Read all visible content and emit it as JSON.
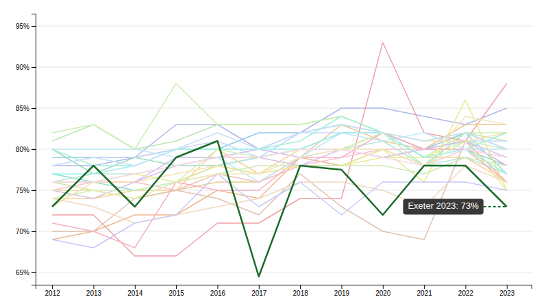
{
  "chart_data": {
    "type": "line",
    "x": [
      2012,
      2013,
      2014,
      2015,
      2016,
      2017,
      2018,
      2019,
      2020,
      2021,
      2022,
      2023
    ],
    "xlim": [
      2011.6,
      2023.6
    ],
    "xticks": [
      2012,
      2013,
      2014,
      2015,
      2016,
      2017,
      2018,
      2019,
      2020,
      2021,
      2022,
      2023
    ],
    "ylim": [
      63.5,
      96.5
    ],
    "yticks": [
      {
        "value": 65,
        "label": "65%"
      },
      {
        "value": 70,
        "label": "70%"
      },
      {
        "value": 75,
        "label": "75%"
      },
      {
        "value": 80,
        "label": "80%"
      },
      {
        "value": 85,
        "label": "85%"
      },
      {
        "value": 90,
        "label": "90%"
      },
      {
        "value": 95,
        "label": "95%"
      }
    ],
    "grid": true,
    "series": [
      {
        "color": "#b8e8b0",
        "values": [
          81,
          83,
          80,
          81,
          83,
          83,
          83,
          84,
          82,
          81,
          82,
          81
        ]
      },
      {
        "color": "#90c8e0",
        "values": [
          79,
          79,
          79,
          80,
          80,
          82,
          82,
          83,
          82,
          80,
          82,
          80
        ]
      },
      {
        "color": "#b0b8e8",
        "values": [
          78,
          78,
          79,
          83,
          83,
          80,
          82,
          85,
          85,
          84,
          83,
          85
        ]
      },
      {
        "color": "#f0a0a8",
        "values": [
          72,
          72,
          67,
          67,
          71,
          71,
          74,
          74,
          93,
          82,
          81,
          88
        ]
      },
      {
        "color": "#a0d8c0",
        "values": [
          80,
          77,
          79,
          78,
          78,
          79,
          80,
          80,
          82,
          80,
          80,
          78
        ]
      },
      {
        "color": "#e8c890",
        "values": [
          75,
          75,
          74,
          75,
          76,
          76,
          79,
          83,
          81,
          80,
          83,
          83
        ]
      },
      {
        "color": "#d8b8f0",
        "values": [
          76,
          76,
          76,
          78,
          79,
          80,
          79,
          80,
          79,
          80,
          81,
          78
        ]
      },
      {
        "color": "#f8d090",
        "values": [
          74,
          74,
          75,
          75,
          80,
          77,
          80,
          80,
          82,
          79,
          79,
          76
        ]
      },
      {
        "color": "#90e0d0",
        "values": [
          77,
          76,
          75,
          76,
          78,
          79,
          80,
          82,
          82,
          78,
          82,
          77
        ]
      },
      {
        "color": "#f0b890",
        "values": [
          69,
          70,
          72,
          72,
          75,
          74,
          79,
          78,
          80,
          78,
          80,
          76
        ]
      },
      {
        "color": "#e8f090",
        "values": [
          76,
          75,
          74,
          75,
          77,
          76,
          78,
          78,
          79,
          79,
          81,
          75
        ]
      },
      {
        "color": "#c0e8f8",
        "values": [
          80,
          80,
          80,
          79,
          79,
          76,
          79,
          82,
          81,
          82,
          80,
          80
        ]
      },
      {
        "color": "#f8c0d0",
        "values": [
          75,
          76,
          76,
          75,
          77,
          76,
          78,
          79,
          80,
          80,
          80,
          79
        ]
      },
      {
        "color": "#b8e8d8",
        "values": [
          76,
          77,
          77,
          78,
          78,
          79,
          80,
          80,
          81,
          78,
          79,
          77
        ]
      },
      {
        "color": "#e0c0b0",
        "values": [
          70,
          70,
          74,
          75,
          74,
          72,
          77,
          73,
          70,
          69,
          81,
          76
        ]
      },
      {
        "color": "#c8f0b0",
        "values": [
          82,
          83,
          80,
          88,
          83,
          83,
          83,
          84,
          82,
          79,
          82,
          82
        ]
      },
      {
        "color": "#c8d8f8",
        "values": [
          78,
          79,
          79,
          80,
          81,
          79,
          82,
          82,
          82,
          80,
          81,
          81
        ]
      },
      {
        "color": "#f8e0b0",
        "values": [
          73,
          76,
          76,
          77,
          78,
          77,
          80,
          80,
          82,
          81,
          81,
          82
        ]
      },
      {
        "color": "#d8c0e8",
        "values": [
          75,
          74,
          76,
          79,
          79,
          79,
          78,
          80,
          79,
          80,
          81,
          79
        ]
      },
      {
        "color": "#a0f0d8",
        "values": [
          80,
          78,
          78,
          80,
          80,
          80,
          81,
          84,
          82,
          79,
          80,
          82
        ]
      },
      {
        "color": "#f8b0c0",
        "values": [
          71,
          70,
          68,
          76,
          75,
          75,
          79,
          79,
          82,
          80,
          80,
          76
        ]
      },
      {
        "color": "#a0f0f0",
        "values": [
          77,
          77,
          78,
          80,
          80,
          80,
          80,
          82,
          82,
          79,
          80,
          77
        ]
      },
      {
        "color": "#e8e890",
        "values": [
          76,
          76,
          77,
          76,
          78,
          77,
          78,
          78,
          80,
          76,
          86,
          75
        ]
      },
      {
        "color": "#d0e8b8",
        "values": [
          76,
          75,
          74,
          76,
          77,
          78,
          78,
          78,
          78,
          77,
          79,
          78
        ]
      },
      {
        "color": "#f0d8c0",
        "values": [
          74,
          73,
          71,
          72,
          73,
          74,
          76,
          76,
          75,
          73,
          78,
          76
        ]
      },
      {
        "color": "#c8c8f8",
        "values": [
          69,
          68,
          71,
          72,
          77,
          73,
          76,
          72,
          76,
          76,
          76,
          75
        ]
      },
      {
        "color": "#d0f0b8",
        "values": [
          74,
          75,
          75,
          76,
          80,
          79,
          80,
          80,
          82,
          78,
          81,
          80
        ]
      },
      {
        "color": "#f8d8e8",
        "values": [
          76,
          76,
          77,
          78,
          79,
          79,
          80,
          80,
          79,
          78,
          80,
          79
        ]
      },
      {
        "color": "#c8e0f8",
        "values": [
          78,
          79,
          78,
          80,
          82,
          80,
          82,
          83,
          82,
          81,
          82,
          80
        ]
      },
      {
        "color": "#f0e8b8",
        "values": [
          75,
          75,
          74,
          76,
          77,
          77,
          79,
          80,
          80,
          78,
          84,
          83
        ]
      },
      {
        "color": "#1a6b2a",
        "values": [
          73,
          78,
          73,
          79,
          81,
          64.5,
          78,
          77.5,
          72,
          78,
          78,
          73
        ]
      }
    ],
    "annotations": [
      {
        "text": "Exeter 2023: 73%",
        "x": 2023,
        "y": 73
      }
    ]
  }
}
